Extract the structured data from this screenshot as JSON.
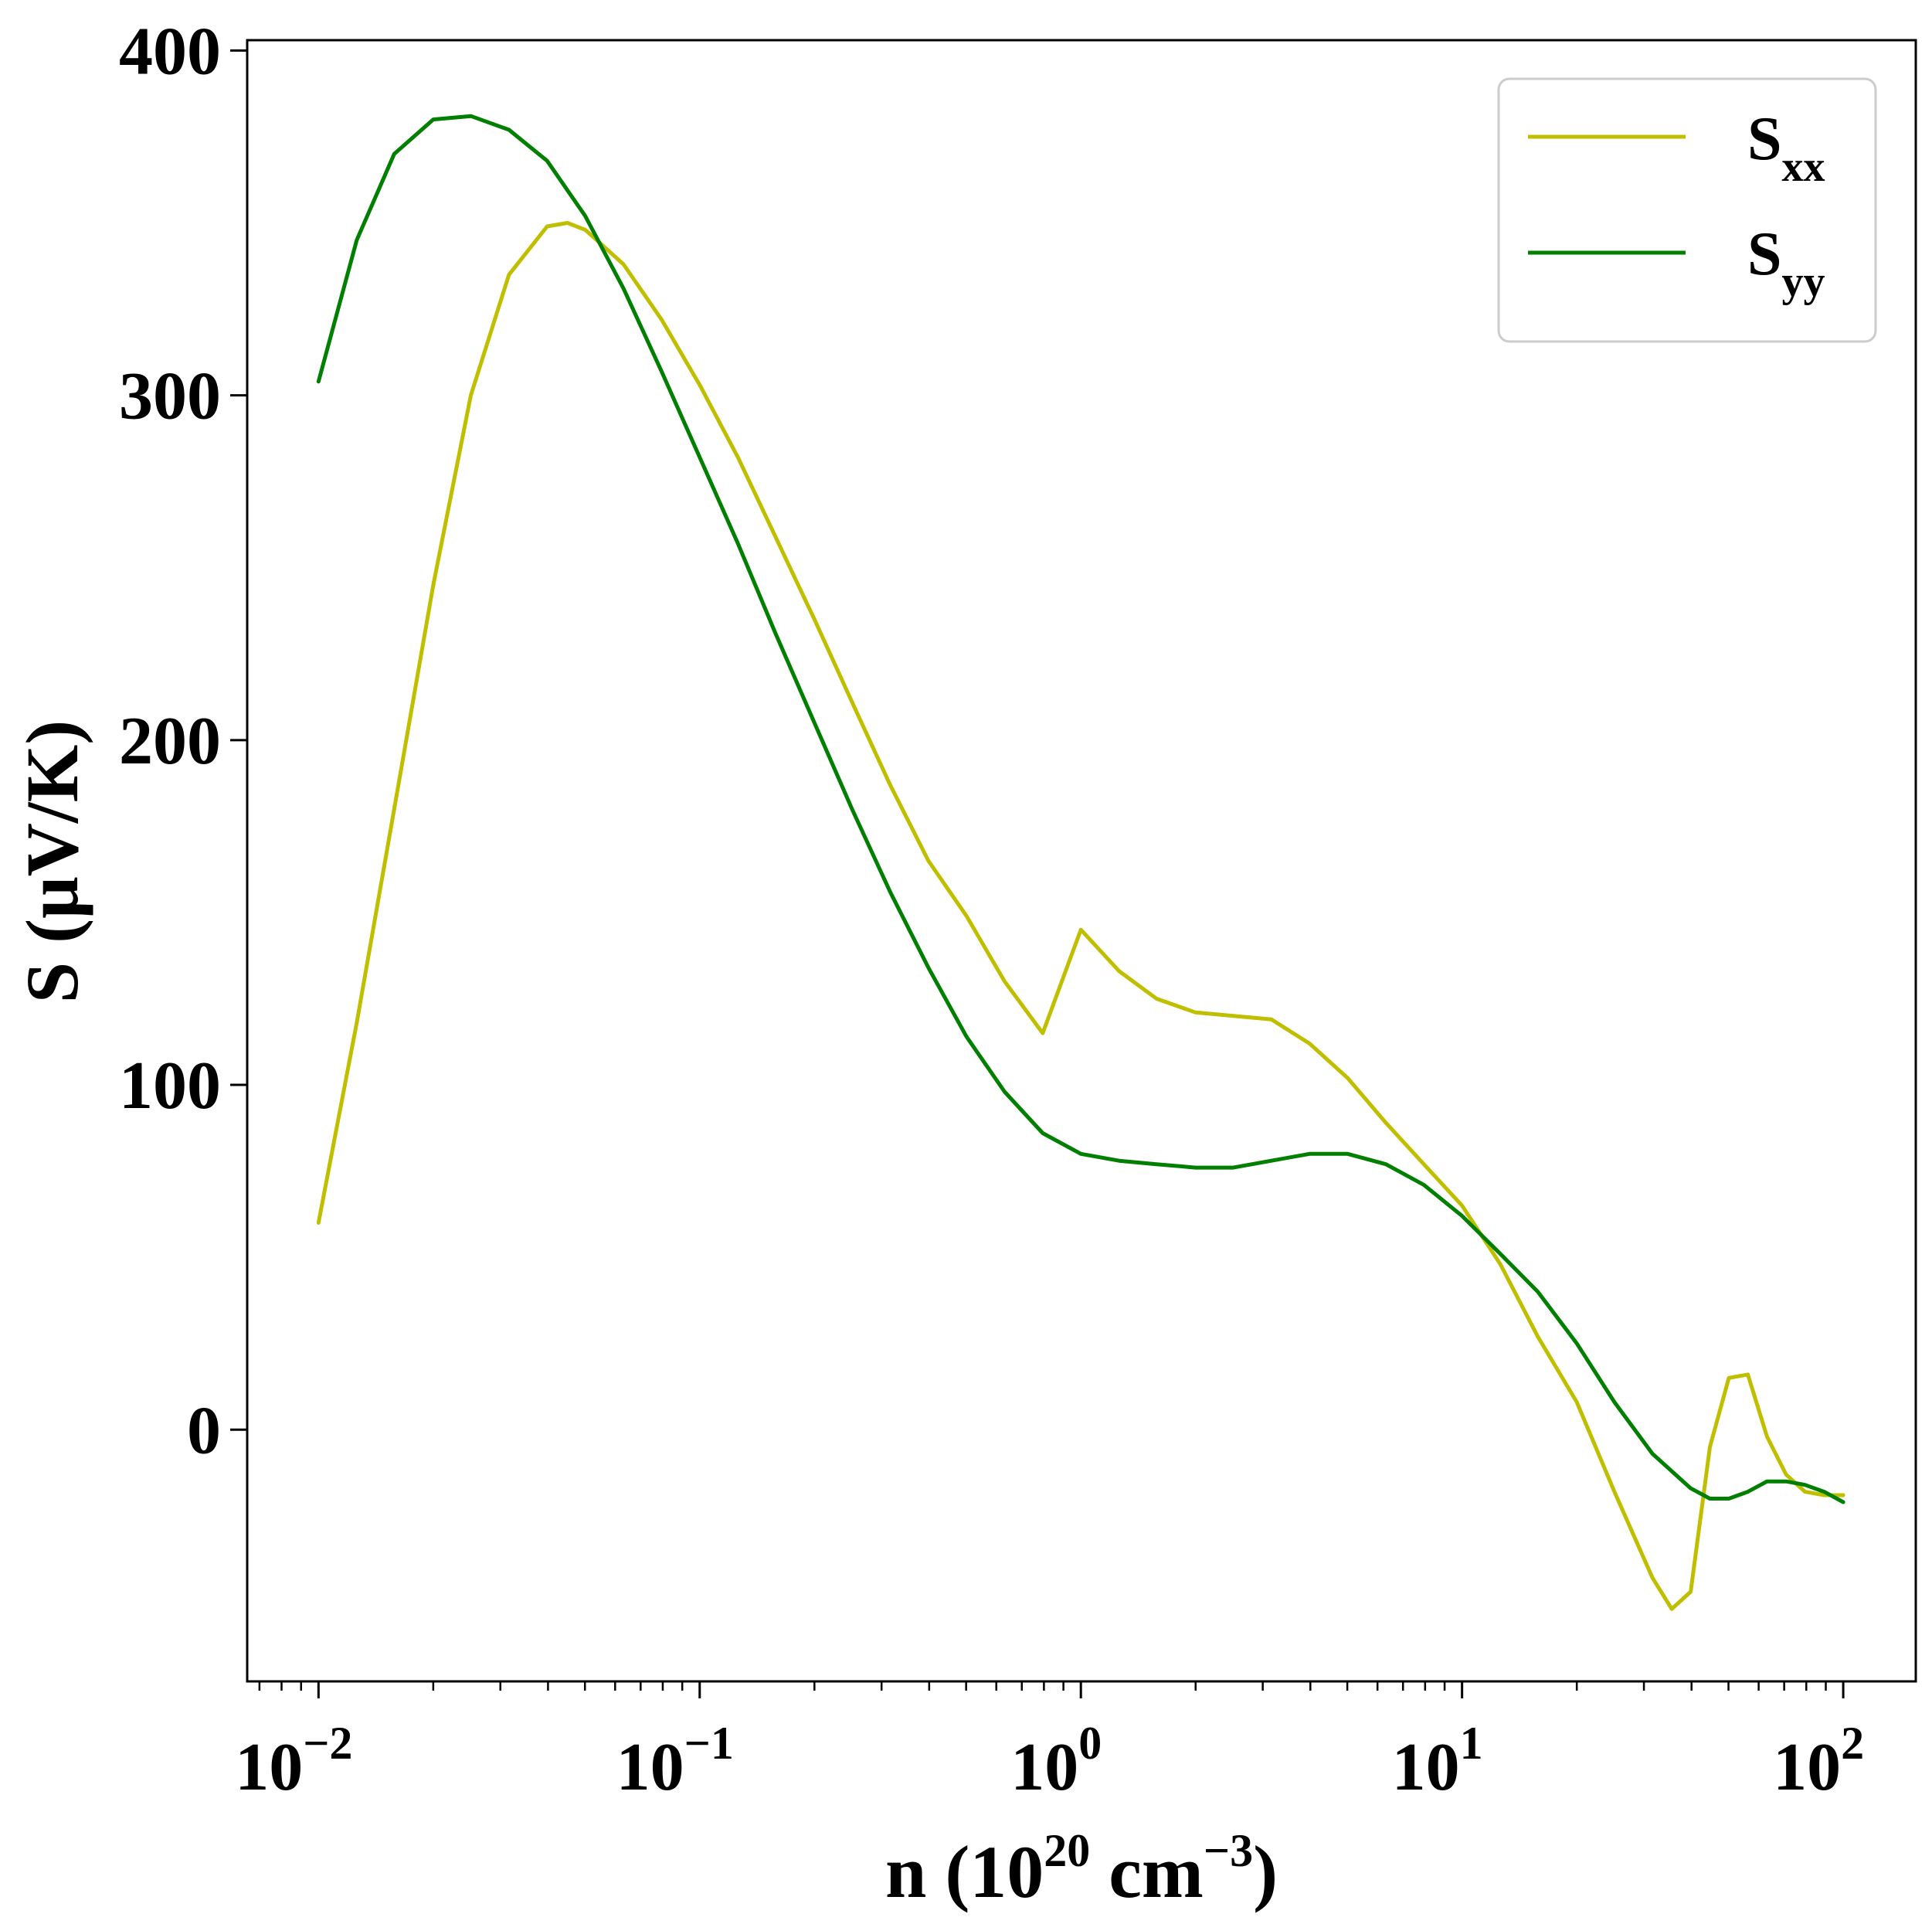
{
  "chart_data": {
    "type": "line",
    "xlabel": {
      "base": "n (10",
      "exp": "20",
      "mid": " cm",
      "exp2": "−3",
      "end": ")"
    },
    "ylabel": "S (μV/K)",
    "x_scale": "log",
    "xlim": [
      0.0065,
      155
    ],
    "ylim": [
      -73,
      403
    ],
    "x_ticks": [
      {
        "value": 0.01,
        "base": "10",
        "exp": "−2"
      },
      {
        "value": 0.1,
        "base": "10",
        "exp": "−1"
      },
      {
        "value": 1,
        "base": "10",
        "exp": "0"
      },
      {
        "value": 10,
        "base": "10",
        "exp": "1"
      },
      {
        "value": 100,
        "base": "10",
        "exp": "2"
      }
    ],
    "y_ticks": [
      0,
      100,
      200,
      300,
      400
    ],
    "y_tick_labels": [
      "0",
      "100",
      "200",
      "300",
      "400"
    ],
    "grid": false,
    "legend_position": "top-right",
    "series": [
      {
        "name": "S",
        "name_sub": "xx",
        "color": "#bfbf00",
        "x": [
          0.01,
          0.0126,
          0.0158,
          0.02,
          0.0251,
          0.0316,
          0.0398,
          0.045,
          0.0501,
          0.0631,
          0.0794,
          0.1,
          0.126,
          0.158,
          0.2,
          0.251,
          0.316,
          0.398,
          0.501,
          0.631,
          0.794,
          1.0,
          1.26,
          1.58,
          2.0,
          2.51,
          3.16,
          3.98,
          5.01,
          6.31,
          7.94,
          10.0,
          12.6,
          15.8,
          20.0,
          25.1,
          31.6,
          35.5,
          39.8,
          44.7,
          50.1,
          56.2,
          63.1,
          70.8,
          79.4,
          89.1,
          100.0
        ],
        "y": [
          60,
          118,
          180,
          245,
          300,
          335,
          349,
          350,
          348,
          338,
          322,
          303,
          282,
          259,
          235,
          211,
          187,
          165,
          149,
          130,
          115,
          145,
          133,
          125,
          121,
          120,
          119,
          112,
          102,
          89,
          77,
          65,
          48,
          27,
          8,
          -18,
          -43,
          -52,
          -47,
          -5,
          15,
          16,
          -2,
          -13,
          -18,
          -19,
          -19
        ]
      },
      {
        "name": "S",
        "name_sub": "yy",
        "color": "#007f00",
        "x": [
          0.01,
          0.0126,
          0.0158,
          0.02,
          0.0251,
          0.0316,
          0.0398,
          0.0501,
          0.0631,
          0.0794,
          0.1,
          0.126,
          0.158,
          0.2,
          0.251,
          0.316,
          0.398,
          0.501,
          0.631,
          0.794,
          1.0,
          1.26,
          1.58,
          2.0,
          2.51,
          3.16,
          3.98,
          5.01,
          6.31,
          7.94,
          10.0,
          12.6,
          15.8,
          20.0,
          25.1,
          31.6,
          39.8,
          44.7,
          50.1,
          56.2,
          63.1,
          70.8,
          79.4,
          89.1,
          100.0
        ],
        "y": [
          304,
          345,
          370,
          380,
          381,
          377,
          368,
          352,
          331,
          307,
          282,
          257,
          231,
          205,
          180,
          156,
          134,
          114,
          98,
          86,
          80,
          78,
          77,
          76,
          76,
          78,
          80,
          80,
          77,
          71,
          62,
          51,
          40,
          25,
          8,
          -7,
          -17,
          -20,
          -20,
          -18,
          -15,
          -15,
          -16,
          -18,
          -21
        ]
      }
    ]
  }
}
